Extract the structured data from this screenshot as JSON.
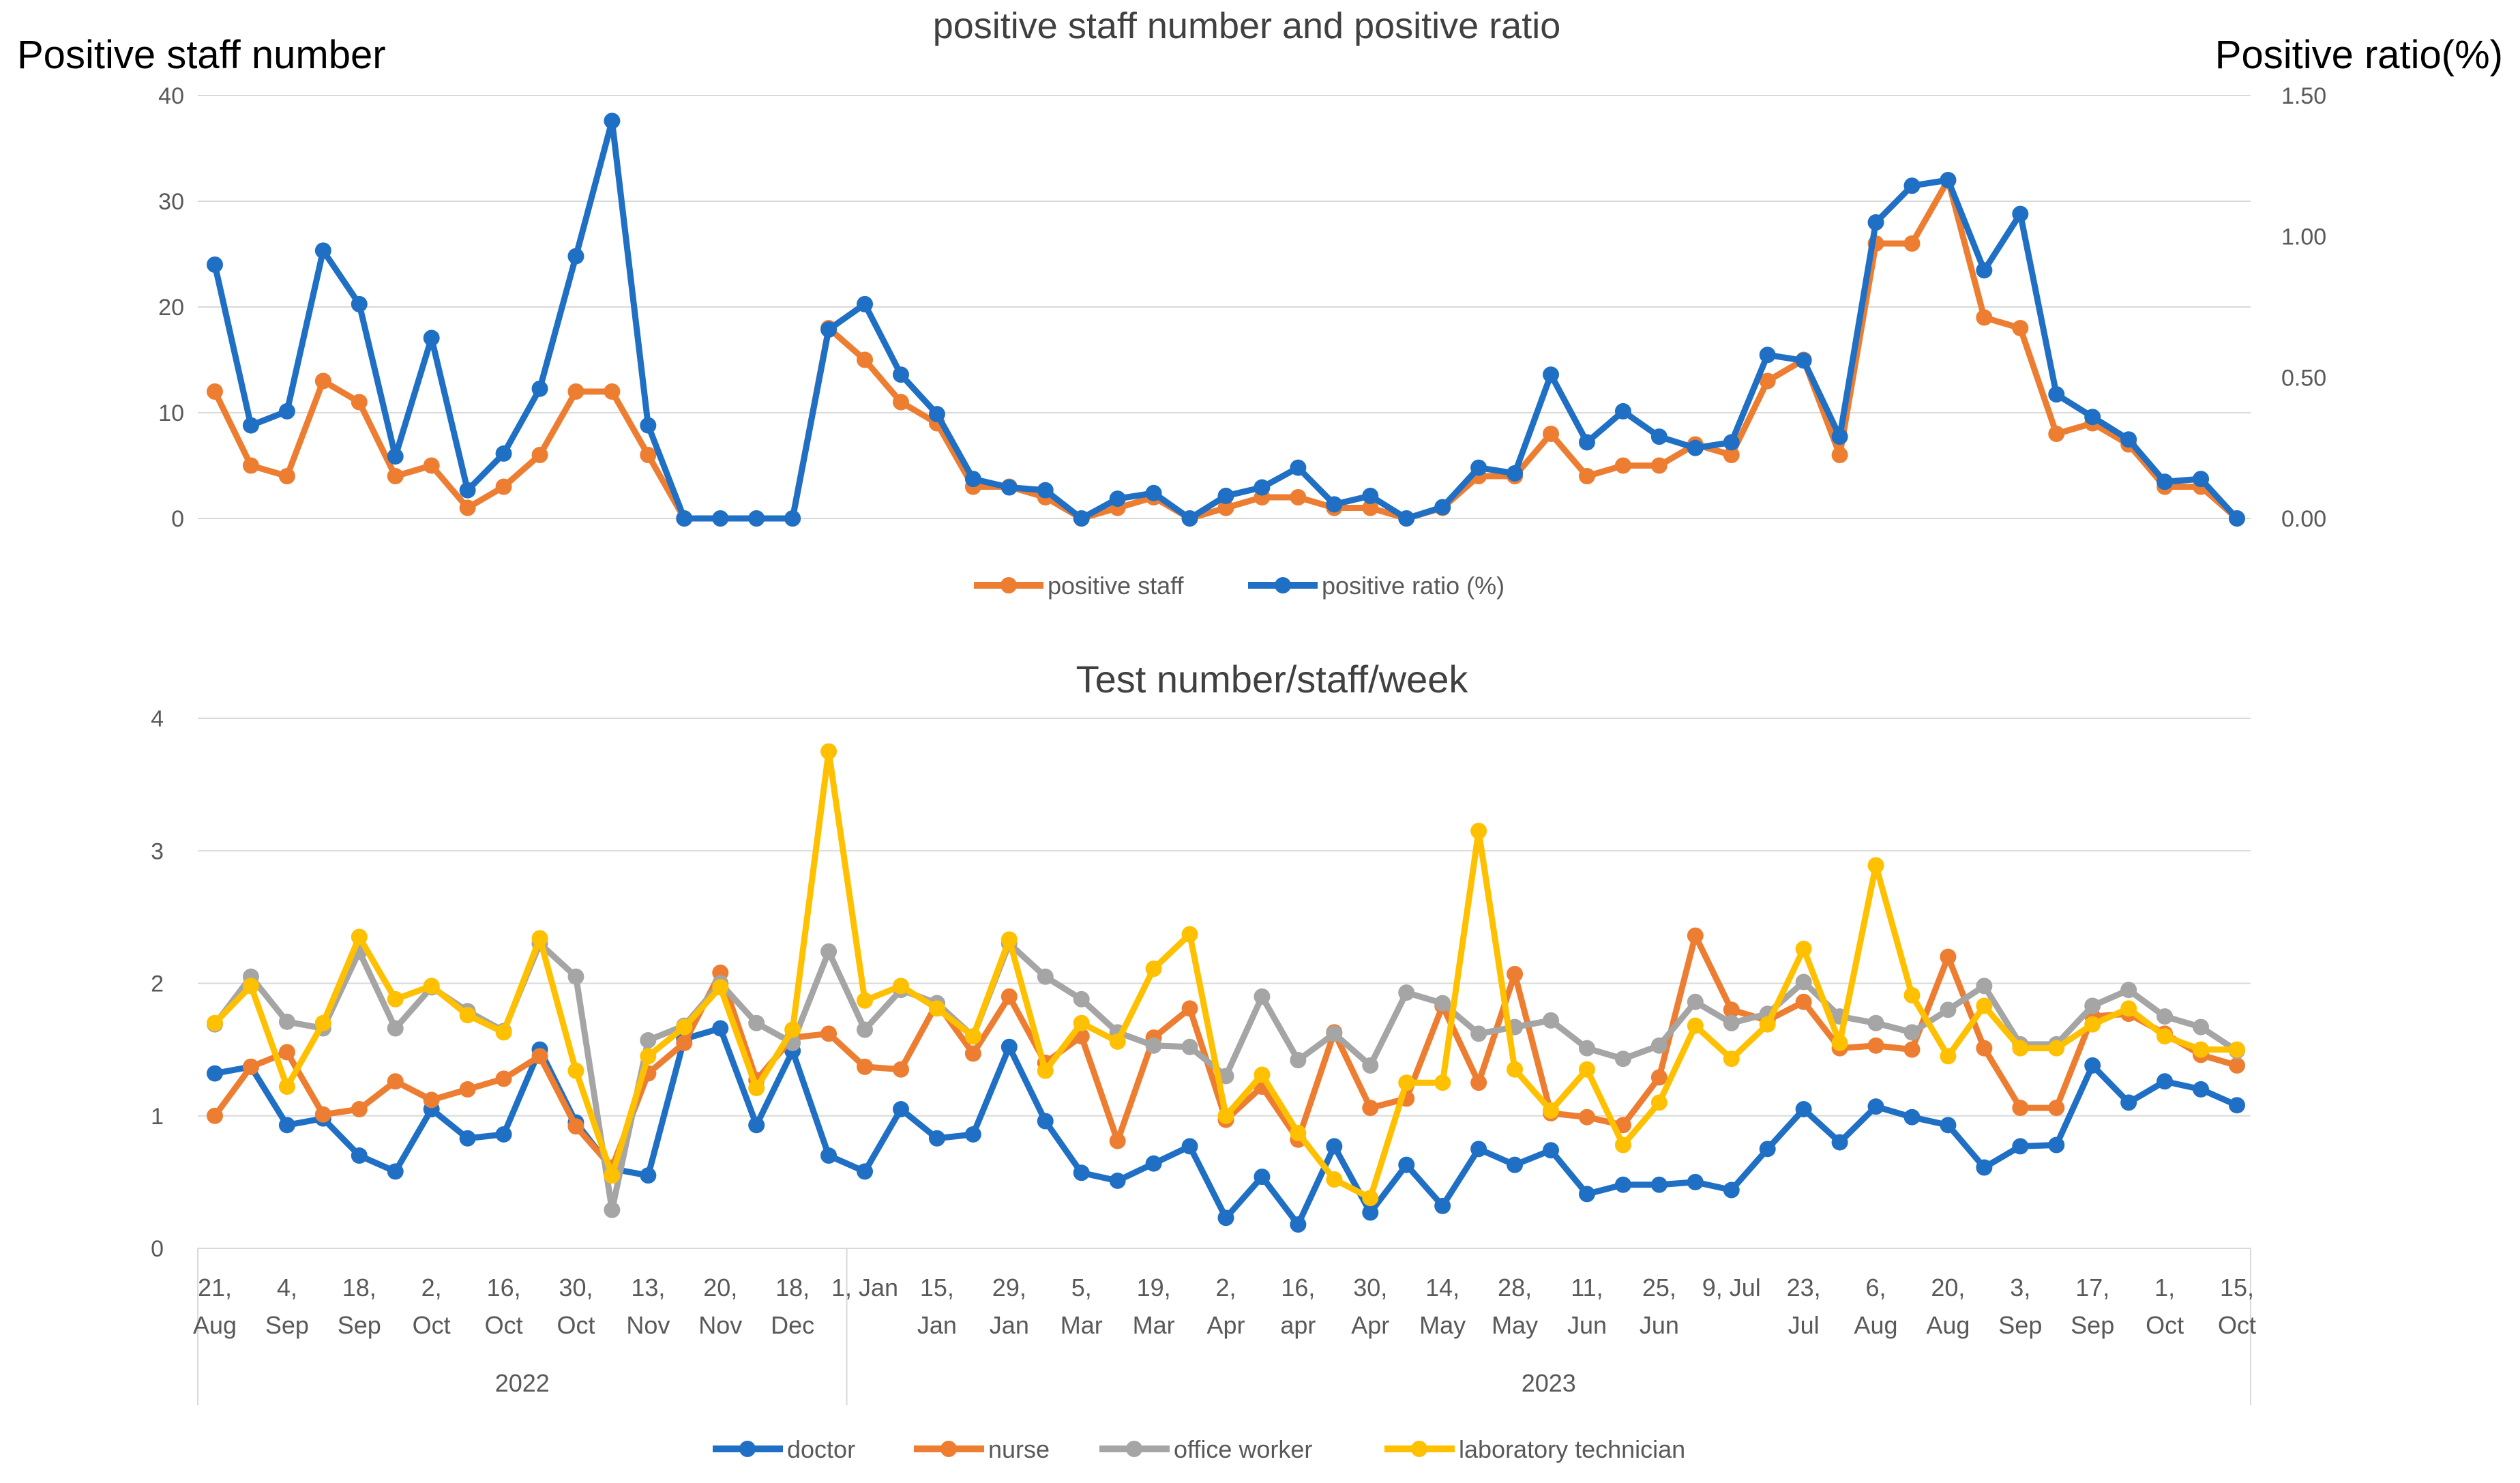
{
  "chart_data": [
    {
      "type": "line",
      "title": "positive staff number and positive ratio",
      "ylabel": "Positive staff number",
      "ylabel_right": "Positive ratio(%)",
      "ylim": [
        0,
        40
      ],
      "ylim_right": [
        0,
        1.5
      ],
      "yticks": [
        "0",
        "10",
        "20",
        "30",
        "40"
      ],
      "yticks_right": [
        "0.00",
        "0.50",
        "1.00",
        "1.50"
      ],
      "gridlines": true,
      "legend_position": "bottom",
      "series": [
        {
          "name": "positive staff",
          "axis": "left",
          "color": "#ED7D31",
          "values": [
            12,
            5,
            4,
            13,
            11,
            4,
            5,
            1,
            3,
            6,
            12,
            12,
            6,
            0,
            0,
            0,
            0,
            18,
            15,
            11,
            9,
            3,
            3,
            2,
            0,
            1,
            2,
            0,
            1,
            2,
            2,
            1,
            1,
            0,
            1,
            4,
            4,
            8,
            4,
            5,
            5,
            7,
            6,
            13,
            15,
            6,
            26,
            26,
            32,
            19,
            18,
            8,
            9,
            7,
            3,
            3,
            0
          ]
        },
        {
          "name": "positive ratio (%)",
          "axis": "right",
          "color": "#1F6FC5",
          "values": [
            0.9,
            0.33,
            0.38,
            0.95,
            0.76,
            0.22,
            0.64,
            0.1,
            0.23,
            0.46,
            0.93,
            1.41,
            0.33,
            0,
            0,
            0,
            0,
            0.67,
            0.76,
            0.51,
            0.37,
            0.14,
            0.11,
            0.1,
            0,
            0.07,
            0.09,
            0,
            0.08,
            0.11,
            0.18,
            0.05,
            0.08,
            0,
            0.04,
            0.18,
            0.16,
            0.51,
            0.27,
            0.38,
            0.29,
            0.25,
            0.27,
            0.58,
            0.56,
            0.29,
            1.05,
            1.18,
            1.2,
            0.88,
            1.08,
            0.44,
            0.36,
            0.28,
            0.13,
            0.14,
            0
          ]
        }
      ]
    },
    {
      "type": "line",
      "title": "Test number/staff/week",
      "ylim": [
        0,
        4
      ],
      "yticks": [
        "0",
        "1",
        "2",
        "3",
        "4"
      ],
      "gridlines": true,
      "legend_position": "bottom",
      "x_labels": [
        {
          "i": 0,
          "top": "21,",
          "bottom": "Aug"
        },
        {
          "i": 2,
          "top": "4,",
          "bottom": "Sep"
        },
        {
          "i": 4,
          "top": "18,",
          "bottom": "Sep"
        },
        {
          "i": 6,
          "top": "2,",
          "bottom": "Oct"
        },
        {
          "i": 8,
          "top": "16,",
          "bottom": "Oct"
        },
        {
          "i": 10,
          "top": "30,",
          "bottom": "Oct"
        },
        {
          "i": 12,
          "top": "13,",
          "bottom": "Nov"
        },
        {
          "i": 14,
          "top": "20,",
          "bottom": "Nov"
        },
        {
          "i": 16,
          "top": "18,",
          "bottom": "Dec"
        },
        {
          "i": 18,
          "top": "1, Jan",
          "bottom": ""
        },
        {
          "i": 20,
          "top": "15,",
          "bottom": "Jan"
        },
        {
          "i": 22,
          "top": "29,",
          "bottom": "Jan"
        },
        {
          "i": 24,
          "top": "5,",
          "bottom": "Mar"
        },
        {
          "i": 26,
          "top": "19,",
          "bottom": "Mar"
        },
        {
          "i": 28,
          "top": "2,",
          "bottom": "Apr"
        },
        {
          "i": 30,
          "top": "16,",
          "bottom": "apr"
        },
        {
          "i": 32,
          "top": "30,",
          "bottom": "Apr"
        },
        {
          "i": 34,
          "top": "14,",
          "bottom": "May"
        },
        {
          "i": 36,
          "top": "28,",
          "bottom": "May"
        },
        {
          "i": 38,
          "top": "11,",
          "bottom": "Jun"
        },
        {
          "i": 40,
          "top": "25,",
          "bottom": "Jun"
        },
        {
          "i": 42,
          "top": "9, Jul",
          "bottom": ""
        },
        {
          "i": 44,
          "top": "23,",
          "bottom": "Jul"
        },
        {
          "i": 46,
          "top": "6,",
          "bottom": "Aug"
        },
        {
          "i": 48,
          "top": "20,",
          "bottom": "Aug"
        },
        {
          "i": 50,
          "top": "3,",
          "bottom": "Sep"
        },
        {
          "i": 52,
          "top": "17,",
          "bottom": "Sep"
        },
        {
          "i": 54,
          "top": "1,",
          "bottom": "Oct"
        },
        {
          "i": 56,
          "top": "15,",
          "bottom": "Oct"
        }
      ],
      "year_groups": [
        {
          "label": "2022",
          "start": 0,
          "end": 18
        },
        {
          "label": "2023",
          "start": 18,
          "end": 57
        }
      ],
      "series": [
        {
          "name": "doctor",
          "color": "#1F6FC5",
          "values": [
            1.32,
            1.37,
            0.93,
            0.98,
            0.7,
            0.58,
            1.05,
            0.83,
            0.86,
            1.5,
            0.95,
            0.6,
            0.55,
            1.58,
            1.66,
            0.93,
            1.49,
            0.7,
            0.58,
            1.05,
            0.83,
            0.86,
            1.52,
            0.96,
            0.57,
            0.51,
            0.64,
            0.77,
            0.23,
            0.54,
            0.18,
            0.77,
            0.27,
            0.63,
            0.32,
            0.75,
            0.63,
            0.74,
            0.41,
            0.48,
            0.48,
            0.5,
            0.44,
            0.75,
            1.05,
            0.8,
            1.07,
            0.99,
            0.93,
            0.61,
            0.77,
            0.78,
            1.38,
            1.1,
            1.26,
            1.2,
            1.08
          ]
        },
        {
          "name": "nurse",
          "color": "#ED7D31",
          "values": [
            1.0,
            1.37,
            1.48,
            1.01,
            1.05,
            1.26,
            1.12,
            1.2,
            1.28,
            1.45,
            0.92,
            0.61,
            1.32,
            1.55,
            2.08,
            1.27,
            1.59,
            1.62,
            1.37,
            1.35,
            1.85,
            1.47,
            1.9,
            1.4,
            1.6,
            0.81,
            1.59,
            1.81,
            0.97,
            1.22,
            0.82,
            1.63,
            1.06,
            1.13,
            1.83,
            1.25,
            2.07,
            1.02,
            0.99,
            0.93,
            1.29,
            2.36,
            1.8,
            1.72,
            1.86,
            1.51,
            1.53,
            1.5,
            2.2,
            1.51,
            1.06,
            1.06,
            1.75,
            1.77,
            1.62,
            1.46,
            1.38
          ]
        },
        {
          "name": "office worker",
          "color": "#A5A5A5",
          "values": [
            1.69,
            2.05,
            1.71,
            1.66,
            2.24,
            1.66,
            1.97,
            1.79,
            1.64,
            2.3,
            2.05,
            0.29,
            1.57,
            1.68,
            2.0,
            1.7,
            1.55,
            2.24,
            1.65,
            1.95,
            1.85,
            1.6,
            2.3,
            2.05,
            1.88,
            1.63,
            1.53,
            1.52,
            1.3,
            1.9,
            1.42,
            1.62,
            1.38,
            1.93,
            1.85,
            1.62,
            1.67,
            1.72,
            1.51,
            1.43,
            1.53,
            1.86,
            1.7,
            1.77,
            2.01,
            1.75,
            1.7,
            1.63,
            1.8,
            1.98,
            1.54,
            1.54,
            1.83,
            1.95,
            1.75,
            1.67,
            1.49
          ]
        },
        {
          "name": "laboratory technician",
          "color": "#FFC000",
          "values": [
            1.7,
            1.98,
            1.22,
            1.7,
            2.35,
            1.88,
            1.98,
            1.76,
            1.63,
            2.34,
            1.34,
            0.55,
            1.45,
            1.67,
            1.97,
            1.21,
            1.65,
            3.75,
            1.87,
            1.98,
            1.81,
            1.6,
            2.33,
            1.34,
            1.7,
            1.56,
            2.11,
            2.37,
            1.0,
            1.31,
            0.87,
            0.52,
            0.38,
            1.25,
            1.25,
            3.15,
            1.35,
            1.04,
            1.35,
            0.78,
            1.1,
            1.68,
            1.43,
            1.69,
            2.26,
            1.55,
            2.89,
            1.91,
            1.45,
            1.83,
            1.51,
            1.51,
            1.69,
            1.81,
            1.6,
            1.5,
            1.5
          ]
        }
      ]
    }
  ]
}
